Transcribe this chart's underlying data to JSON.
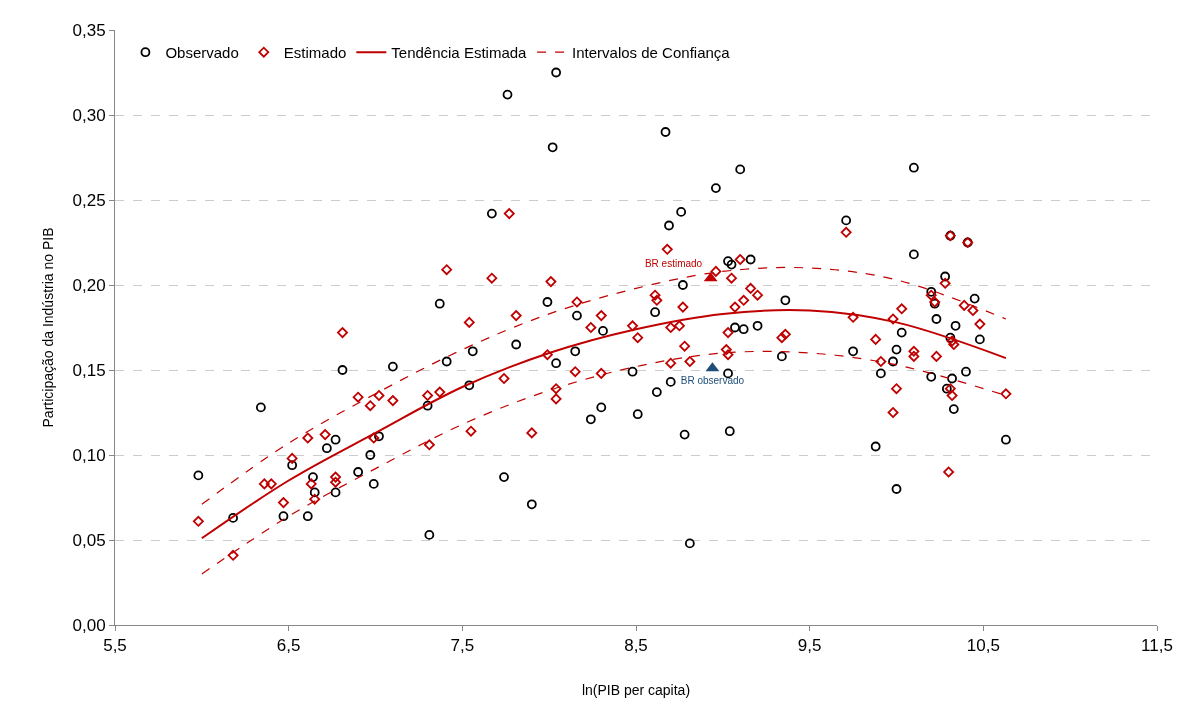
{
  "chart_data": {
    "type": "scatter",
    "xlabel": "ln(PIB per capita)",
    "ylabel": "Participação da Indústria no PIB",
    "xlim": [
      5.5,
      11.5
    ],
    "xticks": [
      {
        "value": 5.5,
        "label": "5,5"
      },
      {
        "value": 6.5,
        "label": "6,5"
      },
      {
        "value": 7.5,
        "label": "7,5"
      },
      {
        "value": 8.5,
        "label": "8,5"
      },
      {
        "value": 9.5,
        "label": "9,5"
      },
      {
        "value": 10.5,
        "label": "10,5"
      },
      {
        "value": 11.5,
        "label": "11,5"
      }
    ],
    "ylim": [
      0,
      0.35
    ],
    "yticks": [
      {
        "value": 0,
        "label": "0,00"
      },
      {
        "value": 0.05,
        "label": "0,05"
      },
      {
        "value": 0.1,
        "label": "0,10"
      },
      {
        "value": 0.15,
        "label": "0,15"
      },
      {
        "value": 0.2,
        "label": "0,20"
      },
      {
        "value": 0.25,
        "label": "0,25"
      },
      {
        "value": 0.3,
        "label": "0,30"
      },
      {
        "value": 0.35,
        "label": "0,35"
      }
    ],
    "grid": "y",
    "legend": "top left",
    "series": [
      {
        "name": "Observado",
        "color": "#000000",
        "marker": "circle",
        "x": [
          5.98,
          6.18,
          6.34,
          6.47,
          6.61,
          6.52,
          6.64,
          6.65,
          6.77,
          6.77,
          6.72,
          6.81,
          6.9,
          6.99,
          6.97,
          7.02,
          7.1,
          7.31,
          7.3,
          7.37,
          7.41,
          7.54,
          7.56,
          7.67,
          7.74,
          7.76,
          8.04,
          8.02,
          8.67,
          9.1,
          8.96,
          8.76,
          8.69,
          9.03,
          9.05,
          9.16,
          8.77,
          7.99,
          9.36,
          8.16,
          8.61,
          8.31,
          9.07,
          9.12,
          9.2,
          7.81,
          8.15,
          8.04,
          9.34,
          8.48,
          9.03,
          8.7,
          8.62,
          8.3,
          8.24,
          8.51,
          8.78,
          9.04,
          7.9,
          8.81,
          10.1,
          9.71,
          10.1,
          10.31,
          10.41,
          10.28,
          10.2,
          10.22,
          10.45,
          10.23,
          10.34,
          10.03,
          10.31,
          10.48,
          9.75,
          10.0,
          9.98,
          9.91,
          10.2,
          10.32,
          10.4,
          10.29,
          10.33,
          10.63,
          9.88,
          10.0
        ],
        "values": [
          0.088,
          0.063,
          0.128,
          0.064,
          0.064,
          0.094,
          0.087,
          0.078,
          0.078,
          0.109,
          0.104,
          0.15,
          0.09,
          0.083,
          0.1,
          0.111,
          0.152,
          0.053,
          0.129,
          0.189,
          0.155,
          0.141,
          0.161,
          0.242,
          0.087,
          0.312,
          0.325,
          0.281,
          0.29,
          0.268,
          0.257,
          0.243,
          0.235,
          0.214,
          0.212,
          0.215,
          0.2,
          0.19,
          0.191,
          0.182,
          0.184,
          0.173,
          0.175,
          0.174,
          0.176,
          0.165,
          0.161,
          0.154,
          0.158,
          0.149,
          0.148,
          0.143,
          0.137,
          0.128,
          0.121,
          0.124,
          0.112,
          0.114,
          0.071,
          0.048,
          0.269,
          0.238,
          0.218,
          0.229,
          0.225,
          0.205,
          0.196,
          0.189,
          0.192,
          0.18,
          0.176,
          0.172,
          0.169,
          0.168,
          0.161,
          0.162,
          0.155,
          0.148,
          0.146,
          0.145,
          0.149,
          0.139,
          0.127,
          0.109,
          0.105,
          0.08
        ]
      },
      {
        "name": "Estimado",
        "color": "#c00000",
        "marker": "diamond",
        "x": [
          5.98,
          6.18,
          6.36,
          6.4,
          6.47,
          6.52,
          6.63,
          6.65,
          6.61,
          6.71,
          6.77,
          6.77,
          6.81,
          6.9,
          6.97,
          7.02,
          6.99,
          7.1,
          7.31,
          7.3,
          7.37,
          7.41,
          7.54,
          7.55,
          7.67,
          7.74,
          7.77,
          7.81,
          7.9,
          8.01,
          7.99,
          8.04,
          8.04,
          8.15,
          8.16,
          8.24,
          8.3,
          8.3,
          8.48,
          8.51,
          8.61,
          8.62,
          8.68,
          8.7,
          8.75,
          8.77,
          8.78,
          8.7,
          8.81,
          8.96,
          9.05,
          9.1,
          9.16,
          9.2,
          9.12,
          9.07,
          9.03,
          9.02,
          9.03,
          9.34,
          9.36,
          9.71,
          9.75,
          9.98,
          10.03,
          9.88,
          9.91,
          10.1,
          10.1,
          10.23,
          10.0,
          9.98,
          10.31,
          10.41,
          10.28,
          10.2,
          10.22,
          10.39,
          10.44,
          10.48,
          10.32,
          10.33,
          10.31,
          10.32,
          10.63,
          10.3
        ],
        "values": [
          0.061,
          0.041,
          0.083,
          0.083,
          0.072,
          0.098,
          0.083,
          0.074,
          0.11,
          0.112,
          0.087,
          0.084,
          0.172,
          0.134,
          0.129,
          0.135,
          0.11,
          0.132,
          0.106,
          0.135,
          0.137,
          0.209,
          0.178,
          0.114,
          0.204,
          0.145,
          0.242,
          0.182,
          0.113,
          0.202,
          0.159,
          0.139,
          0.133,
          0.149,
          0.19,
          0.175,
          0.182,
          0.148,
          0.176,
          0.169,
          0.194,
          0.191,
          0.221,
          0.175,
          0.176,
          0.187,
          0.164,
          0.154,
          0.155,
          0.208,
          0.204,
          0.215,
          0.198,
          0.194,
          0.191,
          0.187,
          0.172,
          0.162,
          0.159,
          0.169,
          0.171,
          0.231,
          0.181,
          0.18,
          0.186,
          0.168,
          0.155,
          0.161,
          0.158,
          0.158,
          0.139,
          0.125,
          0.229,
          0.225,
          0.201,
          0.194,
          0.19,
          0.188,
          0.185,
          0.177,
          0.167,
          0.165,
          0.139,
          0.135,
          0.136,
          0.09
        ]
      },
      {
        "type": "line",
        "name": "Tendência Estimada",
        "color": "#c00000",
        "line_style": "solid",
        "x": [
          6.0,
          6.5,
          7.0,
          7.5,
          8.0,
          8.5,
          9.0,
          9.5,
          10.0,
          10.63
        ],
        "values": [
          0.051,
          0.085,
          0.113,
          0.14,
          0.16,
          0.174,
          0.183,
          0.185,
          0.178,
          0.157
        ]
      },
      {
        "type": "line",
        "name": "Intervalos de Confiança",
        "color": "#c00000",
        "line_style": "dashed",
        "x": [
          6.0,
          6.5,
          7.0,
          7.5,
          8.0,
          8.5,
          9.0,
          9.5,
          10.0,
          10.63
        ],
        "values": [
          0.071,
          0.107,
          0.136,
          0.162,
          0.183,
          0.198,
          0.208,
          0.21,
          0.203,
          0.18
        ]
      },
      {
        "type": "line",
        "color": "#c00000",
        "line_style": "dashed",
        "x": [
          6.0,
          6.5,
          7.0,
          7.5,
          8.0,
          8.5,
          9.0,
          9.5,
          10.0,
          10.63
        ],
        "values": [
          0.03,
          0.064,
          0.092,
          0.118,
          0.138,
          0.152,
          0.16,
          0.16,
          0.153,
          0.135
        ]
      },
      {
        "name": "BR estimado",
        "color": "#c00000",
        "marker": "triangle",
        "x": [
          8.93
        ],
        "values": [
          0.204
        ]
      },
      {
        "name": "BR observado",
        "color": "#1f4e79",
        "marker": "triangle",
        "x": [
          8.94
        ],
        "values": [
          0.151
        ]
      }
    ]
  }
}
